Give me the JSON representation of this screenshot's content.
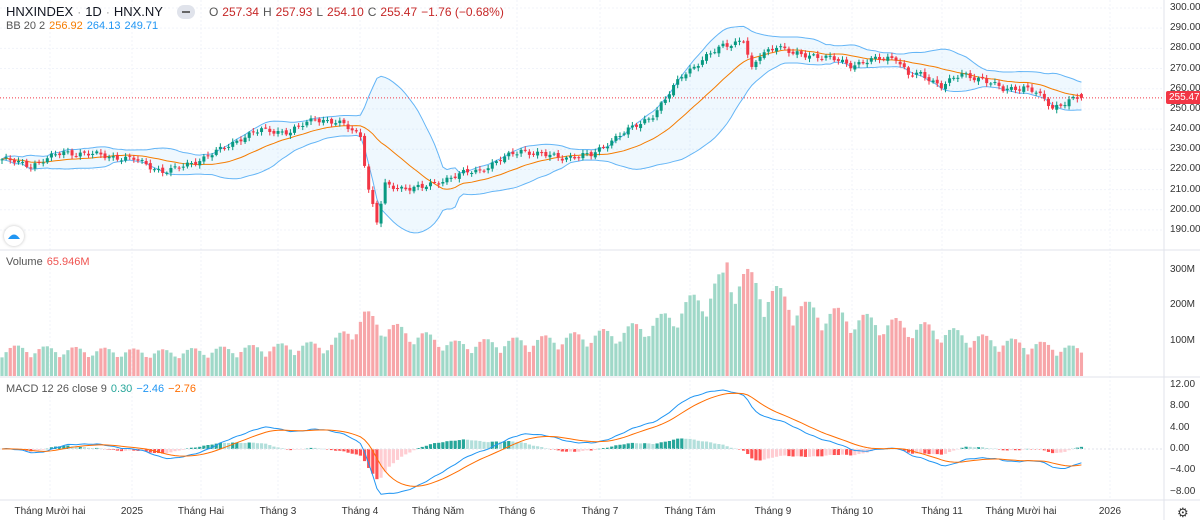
{
  "header": {
    "symbol": "HNXINDEX",
    "interval": "1D",
    "exchange": "HNX.NY",
    "open_label": "O",
    "open": "257.34",
    "high_label": "H",
    "high": "257.93",
    "low_label": "L",
    "low": "254.10",
    "close_label": "C",
    "close": "255.47",
    "change": "−1.76 (−0.68%)"
  },
  "bb": {
    "label": "BB 20 2",
    "basis": "256.92",
    "upper": "264.13",
    "lower": "249.71"
  },
  "volume": {
    "label": "Volume",
    "value": "65.946M"
  },
  "macd": {
    "label": "MACD 12 26 close 9",
    "hist": "0.30",
    "macd": "−2.46",
    "signal": "−2.76"
  },
  "price_axis": [
    "300.00",
    "290.00",
    "280.00",
    "270.00",
    "260.00",
    "250.00",
    "240.00",
    "230.00",
    "220.00",
    "210.00",
    "200.00",
    "190.00"
  ],
  "last_price": "255.47",
  "volume_axis": [
    "300M",
    "200M",
    "100M"
  ],
  "macd_axis": [
    "12.00",
    "8.00",
    "4.00",
    "0.00",
    "−4.00",
    "−8.00"
  ],
  "time_axis": [
    "Tháng Mười hai",
    "2025",
    "Tháng Hai",
    "Tháng 3",
    "Tháng 4",
    "Tháng Năm",
    "Tháng 6",
    "Tháng 7",
    "Tháng Tám",
    "Tháng 9",
    "Tháng 10",
    "Tháng 11",
    "Tháng Mười hai",
    "2026"
  ],
  "colors": {
    "up": "#089981",
    "down": "#f23645",
    "vol_up": "#9fd8c8",
    "vol_down": "#f7a6a9",
    "bb_band": "#64b5f6",
    "bb_basis": "#f57c00",
    "macd": "#2196f3",
    "signal": "#ff6d00"
  },
  "chart_data": {
    "type": "candlestick",
    "close_anchors": [
      [
        0,
        225
      ],
      [
        7,
        222
      ],
      [
        15,
        228.6
      ],
      [
        24,
        227
      ],
      [
        32,
        225
      ],
      [
        39,
        219
      ],
      [
        42,
        220
      ],
      [
        49,
        225.7
      ],
      [
        53,
        229.6
      ],
      [
        58,
        235.6
      ],
      [
        63,
        239.5
      ],
      [
        70,
        238.5
      ],
      [
        76,
        245.5
      ],
      [
        83,
        242
      ],
      [
        87,
        237
      ],
      [
        89,
        209.8
      ],
      [
        91,
        194
      ],
      [
        93,
        212
      ],
      [
        97,
        211
      ],
      [
        102,
        210.8
      ],
      [
        107,
        214.8
      ],
      [
        112,
        218
      ],
      [
        116,
        219.7
      ],
      [
        121,
        224.7
      ],
      [
        126,
        229.6
      ],
      [
        131,
        227.2
      ],
      [
        136,
        226
      ],
      [
        143,
        227
      ],
      [
        148,
        234.6
      ],
      [
        153,
        240.5
      ],
      [
        158,
        247
      ],
      [
        161,
        254.4
      ],
      [
        165,
        266.8
      ],
      [
        170,
        274
      ],
      [
        175,
        281.6
      ],
      [
        180,
        284
      ],
      [
        182,
        269
      ],
      [
        184,
        276.7
      ],
      [
        188,
        281.6
      ],
      [
        192,
        277
      ],
      [
        197,
        276.7
      ],
      [
        201,
        275
      ],
      [
        206,
        271.8
      ],
      [
        211,
        274
      ],
      [
        217,
        275.7
      ],
      [
        220,
        266.8
      ],
      [
        223,
        266.8
      ],
      [
        228,
        261.8
      ],
      [
        233,
        266.8
      ],
      [
        238,
        265
      ],
      [
        243,
        259.4
      ],
      [
        248,
        261
      ],
      [
        251,
        258
      ],
      [
        255,
        250.5
      ],
      [
        259,
        254.4
      ],
      [
        262,
        255.47
      ]
    ],
    "volume_level_anchors": [
      [
        0,
        70
      ],
      [
        20,
        65
      ],
      [
        40,
        60
      ],
      [
        60,
        70
      ],
      [
        80,
        80
      ],
      [
        88,
        150
      ],
      [
        95,
        120
      ],
      [
        110,
        80
      ],
      [
        130,
        90
      ],
      [
        150,
        110
      ],
      [
        160,
        140
      ],
      [
        170,
        200
      ],
      [
        178,
        260
      ],
      [
        185,
        220
      ],
      [
        195,
        170
      ],
      [
        210,
        140
      ],
      [
        225,
        120
      ],
      [
        240,
        90
      ],
      [
        255,
        75
      ],
      [
        262,
        66
      ]
    ],
    "y_range": [
      185,
      302
    ]
  }
}
